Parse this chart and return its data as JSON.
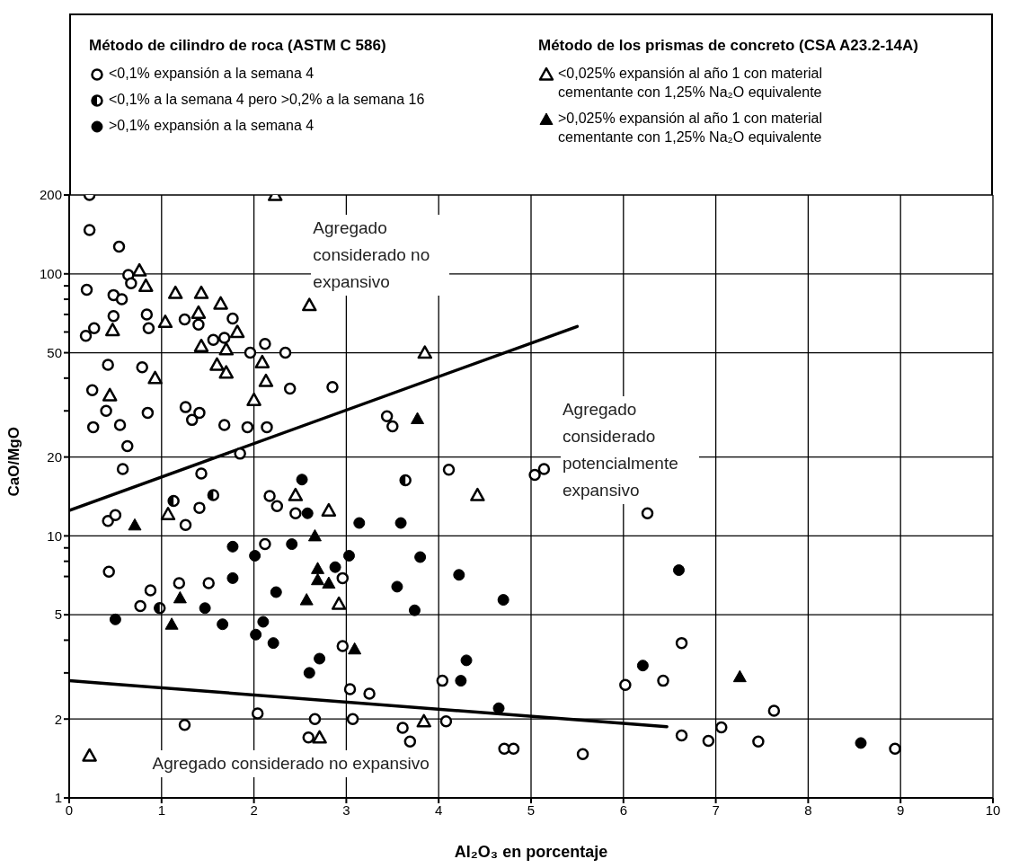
{
  "chart_data": {
    "type": "scatter",
    "xlabel": "Al₂O₃ en porcentaje",
    "ylabel": "CaO/MgO",
    "log": "y",
    "grid": true,
    "legend": "top",
    "xlim": [
      0,
      10
    ],
    "xticks": [
      0,
      1,
      2,
      3,
      4,
      5,
      6,
      7,
      8,
      9,
      10
    ],
    "ylim": [
      1,
      200
    ],
    "yticks": [
      1,
      2,
      {
        "value": 3,
        "label": null
      },
      {
        "value": 4,
        "label": null
      },
      5,
      {
        "value": 7,
        "label": null
      },
      {
        "value": 8,
        "label": null
      },
      {
        "value": 9,
        "label": null
      },
      10,
      20,
      {
        "value": 30,
        "label": null
      },
      {
        "value": 40,
        "label": null
      },
      50,
      {
        "value": 60,
        "label": null
      },
      {
        "value": 70,
        "label": null
      },
      {
        "value": 80,
        "label": null
      },
      {
        "value": 90,
        "label": null
      },
      100,
      200
    ],
    "annotations": [
      "Método de cilindro de roca (ASTM C 586)",
      "Método de los prismas de concreto (CSA A23.2-14A)",
      "Agregado considerado no expansivo",
      "Agregado considerado potencialmente expansivo",
      "Agregado considerado no expansivo"
    ],
    "series": [
      {
        "name": "<0,1% expansión a la semana 4",
        "color": "#000000",
        "marker": "circle",
        "x": [
          0.22,
          0.22,
          0.54,
          0.64,
          0.67,
          0.19,
          0.48,
          0.57,
          1.77,
          1.4,
          1.25,
          0.48,
          0.84,
          0.86,
          0.27,
          0.18,
          1.56,
          1.68,
          1.96,
          2.12,
          2.34,
          0.42,
          0.79,
          2.39,
          0.25,
          0.4,
          0.85,
          1.26,
          1.41,
          1.33,
          0.26,
          0.55,
          1.68,
          1.93,
          2.14,
          0.63,
          1.85,
          0.58,
          1.43,
          1.41,
          0.42,
          0.5,
          1.26,
          2.17,
          2.25,
          2.45,
          2.85,
          3.44,
          3.5,
          4.11,
          5.04,
          5.14,
          6.26,
          2.12,
          0.43,
          2.96,
          1.19,
          1.51,
          0.88,
          0.77,
          2.96,
          3.04,
          3.25,
          2.04,
          3.07,
          2.66,
          1.25,
          2.59,
          4.04,
          4.08,
          3.61,
          3.69,
          4.71,
          4.81,
          5.56,
          6.02,
          6.43,
          6.63,
          6.63,
          6.92,
          7.06,
          7.46,
          7.63,
          8.94
        ],
        "values": [
          200,
          147,
          127,
          99,
          92,
          87,
          83,
          80,
          67.5,
          64,
          67,
          69,
          70,
          62,
          62,
          58,
          56,
          57,
          50,
          54,
          50,
          45,
          44,
          36.5,
          36,
          30,
          29.5,
          31,
          29.5,
          27.7,
          26,
          26.5,
          26.5,
          26,
          26,
          22,
          20.6,
          18,
          17.3,
          12.8,
          11.4,
          12,
          11,
          14.2,
          13,
          12.2,
          37,
          28.6,
          26.2,
          17.9,
          17.1,
          18,
          12.2,
          9.3,
          7.3,
          6.9,
          6.6,
          6.6,
          6.2,
          5.4,
          3.8,
          2.6,
          2.5,
          2.1,
          2,
          2,
          1.9,
          1.7,
          2.8,
          1.96,
          1.85,
          1.64,
          1.54,
          1.54,
          1.47,
          2.7,
          2.8,
          3.9,
          1.73,
          1.65,
          1.86,
          1.64,
          2.15,
          1.54
        ]
      },
      {
        "name": "<0,1% a la semana 4 pero >0,2% a la semana 16",
        "color": "#000000",
        "marker": "circle",
        "x": [
          1.56,
          1.13,
          3.64,
          0.98
        ],
        "values": [
          14.3,
          13.6,
          16.3,
          5.3
        ]
      },
      {
        "name": ">0,1% expansión a la semana 4",
        "color": "#000000",
        "marker": "circle",
        "x": [
          2.52,
          2.58,
          3.14,
          3.59,
          1.77,
          2.01,
          2.41,
          3.03,
          1.77,
          2.88,
          2.24,
          1.47,
          0.5,
          1.66,
          2.1,
          2.02,
          2.21,
          2.71,
          2.6,
          3.8,
          4.22,
          3.55,
          3.74,
          4.7,
          4.3,
          4.24,
          4.65,
          6.21,
          6.6,
          8.57
        ],
        "values": [
          16.4,
          12.2,
          11.2,
          11.2,
          9.1,
          8.4,
          9.3,
          8.4,
          6.9,
          7.6,
          6.1,
          5.3,
          4.8,
          4.6,
          4.7,
          4.2,
          3.9,
          3.4,
          3,
          8.3,
          7.1,
          6.4,
          5.2,
          5.7,
          3.35,
          2.8,
          2.2,
          3.2,
          7.4,
          1.62
        ]
      },
      {
        "name": "<0,025% expansión al año 1 con material cementante con 1,25% Na₂O equivalente",
        "color": "#000000",
        "marker": "triangle",
        "x": [
          2.23,
          0.76,
          0.83,
          1.15,
          1.43,
          1.64,
          1.4,
          1.82,
          0.47,
          1.04,
          1.43,
          1.7,
          2.09,
          1.6,
          1.7,
          0.93,
          2.13,
          0.44,
          2,
          2.6,
          3.85,
          1.07,
          2.45,
          2.81,
          4.42,
          2.92,
          2.71,
          0.22,
          3.84
        ],
        "values": [
          200,
          103,
          90,
          84.5,
          84.5,
          77,
          71,
          60,
          61,
          65.5,
          53,
          51.5,
          46,
          45,
          42,
          40,
          39,
          34.4,
          33,
          76,
          50,
          12.1,
          14.3,
          12.5,
          14.3,
          5.5,
          1.7,
          1.45,
          1.96
        ]
      },
      {
        "name": ">0,025% expansión al año 1 con material cementante con 1,25% Na₂O equivalente",
        "color": "#000000",
        "marker": "triangle",
        "x": [
          3.77,
          0.71,
          2.66,
          2.69,
          2.69,
          2.81,
          1.2,
          2.57,
          1.11,
          3.09,
          7.26
        ],
        "values": [
          28,
          11,
          10,
          7.5,
          6.8,
          6.6,
          5.8,
          5.7,
          4.6,
          3.7,
          2.9
        ]
      },
      {
        "type": "line",
        "color": "#000000",
        "x": [
          0,
          5.5
        ],
        "values": [
          12.5,
          63
        ]
      },
      {
        "type": "line",
        "color": "#000000",
        "x": [
          0,
          6.47
        ],
        "values": [
          2.8,
          1.87
        ]
      }
    ]
  }
}
